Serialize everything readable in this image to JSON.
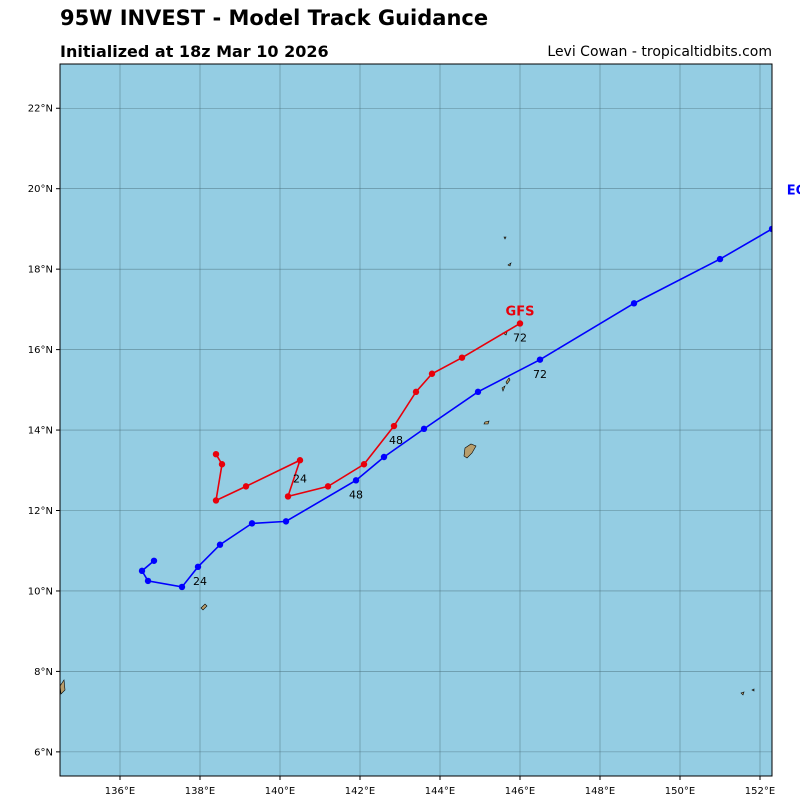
{
  "header": {
    "title": "95W INVEST - Model Track Guidance",
    "subtitle": "Initialized at 18z Mar 10 2026",
    "credit": "Levi Cowan - tropicaltidbits.com"
  },
  "colors": {
    "ocean": "#94cde3",
    "land": "#b79d6c",
    "grid": "#4a6e7a",
    "gfs": "#e8000b",
    "ecmwf": "#0000ff"
  },
  "axes": {
    "lon_range": [
      134.5,
      152.3
    ],
    "lat_range": [
      5.4,
      23.1
    ],
    "x_ticks": [
      {
        "value": 136,
        "label": "136°E"
      },
      {
        "value": 138,
        "label": "138°E"
      },
      {
        "value": 140,
        "label": "140°E"
      },
      {
        "value": 142,
        "label": "142°E"
      },
      {
        "value": 144,
        "label": "144°E"
      },
      {
        "value": 146,
        "label": "146°E"
      },
      {
        "value": 148,
        "label": "148°E"
      },
      {
        "value": 150,
        "label": "150°E"
      },
      {
        "value": 152,
        "label": "152°E"
      }
    ],
    "y_ticks": [
      {
        "value": 6,
        "label": "6°N"
      },
      {
        "value": 8,
        "label": "8°N"
      },
      {
        "value": 10,
        "label": "10°N"
      },
      {
        "value": 12,
        "label": "12°N"
      },
      {
        "value": 14,
        "label": "14°N"
      },
      {
        "value": 16,
        "label": "16°N"
      },
      {
        "value": 18,
        "label": "18°N"
      },
      {
        "value": 20,
        "label": "20°N"
      },
      {
        "value": 22,
        "label": "22°N"
      }
    ]
  },
  "tracks": [
    {
      "name": "GFS",
      "label": "GFS",
      "color": "#e8000b",
      "label_pos": [
        146.0,
        16.85
      ],
      "points": [
        [
          138.4,
          13.4
        ],
        [
          138.55,
          13.15
        ],
        [
          138.4,
          12.25
        ],
        [
          139.15,
          12.6
        ],
        [
          140.5,
          13.25
        ],
        [
          140.2,
          12.35
        ],
        [
          141.2,
          12.6
        ],
        [
          142.1,
          13.15
        ],
        [
          142.85,
          14.1
        ],
        [
          143.4,
          14.95
        ],
        [
          143.8,
          15.4
        ],
        [
          144.55,
          15.8
        ],
        [
          146.0,
          16.65
        ]
      ],
      "hour_labels": [
        {
          "text": "24",
          "lon": 140.5,
          "lat": 12.7
        },
        {
          "text": "48",
          "lon": 142.9,
          "lat": 13.65
        },
        {
          "text": "72",
          "lon": 146.0,
          "lat": 16.2
        }
      ]
    },
    {
      "name": "ECMWF",
      "label": "EC",
      "color": "#0000ff",
      "label_pos": [
        152.9,
        19.85
      ],
      "points": [
        [
          136.85,
          10.75
        ],
        [
          136.55,
          10.5
        ],
        [
          136.7,
          10.25
        ],
        [
          137.55,
          10.1
        ],
        [
          137.95,
          10.6
        ],
        [
          138.5,
          11.15
        ],
        [
          139.3,
          11.68
        ],
        [
          140.15,
          11.73
        ],
        [
          141.9,
          12.75
        ],
        [
          142.6,
          13.33
        ],
        [
          143.6,
          14.03
        ],
        [
          144.95,
          14.95
        ],
        [
          146.5,
          15.75
        ],
        [
          148.85,
          17.15
        ],
        [
          151.0,
          18.25
        ],
        [
          152.3,
          19.0
        ]
      ],
      "hour_labels": [
        {
          "text": "24",
          "lon": 138.0,
          "lat": 10.15
        },
        {
          "text": "48",
          "lon": 141.9,
          "lat": 12.3
        },
        {
          "text": "72",
          "lon": 146.5,
          "lat": 15.3
        }
      ]
    }
  ]
}
